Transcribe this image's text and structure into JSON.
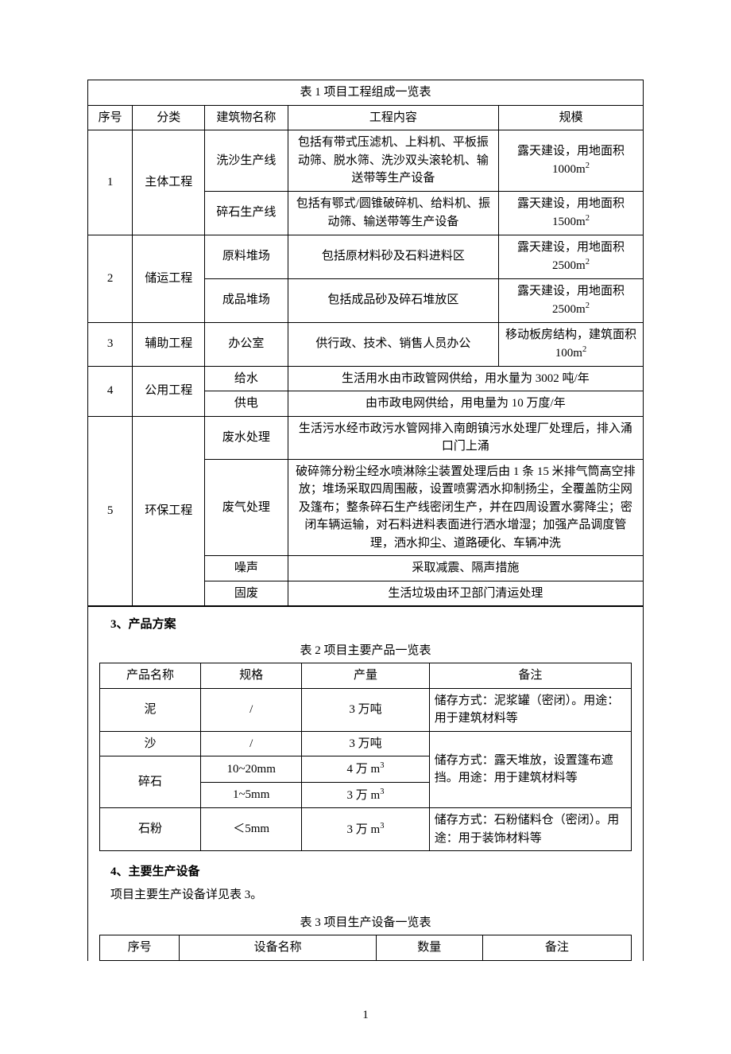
{
  "page_number": "1",
  "table1": {
    "title": "表 1   项目工程组成一览表",
    "headers": [
      "序号",
      "分类",
      "建筑物名称",
      "工程内容",
      "规模"
    ],
    "col_widths": [
      "8%",
      "13%",
      "15%",
      "38%",
      "26%"
    ],
    "rows": [
      {
        "seq": "1",
        "cat": "主体工程",
        "cat_rowspan": 2,
        "seq_rowspan": 2,
        "name": "洗沙生产线",
        "content": "包括有带式压滤机、上料机、平板振动筛、脱水筛、洗沙双头滚轮机、输送带等生产设备",
        "scale": "露天建设，用地面积1000m²"
      },
      {
        "name": "碎石生产线",
        "content": "包括有鄂式/圆锥破碎机、给料机、振动筛、输送带等生产设备",
        "scale": "露天建设，用地面积1500m²"
      },
      {
        "seq": "2",
        "cat": "储运工程",
        "cat_rowspan": 2,
        "seq_rowspan": 2,
        "name": "原料堆场",
        "content": "包括原材料砂及石料进料区",
        "scale": "露天建设，用地面积2500m²"
      },
      {
        "name": "成品堆场",
        "content": "包括成品砂及碎石堆放区",
        "scale": "露天建设，用地面积2500m²"
      },
      {
        "seq": "3",
        "cat": "辅助工程",
        "name": "办公室",
        "content": "供行政、技术、销售人员办公",
        "scale": "移动板房结构，建筑面积 100m²"
      },
      {
        "seq": "4",
        "cat": "公用工程",
        "cat_rowspan": 2,
        "seq_rowspan": 2,
        "name": "给水",
        "merged_content": "生活用水由市政管网供给，用水量为 3002 吨/年"
      },
      {
        "name": "供电",
        "merged_content": "由市政电网供给，用电量为 10 万度/年"
      },
      {
        "seq": "5",
        "cat": "环保工程",
        "cat_rowspan": 4,
        "seq_rowspan": 4,
        "name": "废水处理",
        "merged_content": "生活污水经市政污水管网排入南朗镇污水处理厂处理后，排入涌口门上涌"
      },
      {
        "name": "废气处理",
        "merged_content": "破碎筛分粉尘经水喷淋除尘装置处理后由 1 条 15 米排气筒高空排放；堆场采取四周围蔽，设置喷雾洒水抑制扬尘，全覆盖防尘网及篷布；整条碎石生产线密闭生产，并在四周设置水雾降尘；密闭车辆运输，对石料进料表面进行洒水增湿；加强产品调度管理，洒水抑尘、道路硬化、车辆冲洗"
      },
      {
        "name": "噪声",
        "merged_content": "采取减震、隔声措施"
      },
      {
        "name": "固废",
        "merged_content": "生活垃圾由环卫部门清运处理"
      }
    ]
  },
  "section3": {
    "heading": "3、产品方案"
  },
  "table2": {
    "title": "表 2  项目主要产品一览表",
    "headers": [
      "产品名称",
      "规格",
      "产量",
      "备注"
    ],
    "col_widths": [
      "19%",
      "19%",
      "24%",
      "38%"
    ],
    "rows": [
      {
        "name": "泥",
        "spec": "/",
        "output": "3 万吨",
        "note": "储存方式：泥浆罐（密闭）。用途：用于建筑材料等"
      },
      {
        "name": "沙",
        "spec": "/",
        "output": "3 万吨",
        "note": "储存方式：露天堆放，设置篷布遮挡。用途：用于建筑材料等",
        "note_rowspan": 3
      },
      {
        "name": "碎石",
        "name_rowspan": 2,
        "spec": "10~20mm",
        "output": "4 万 m³"
      },
      {
        "spec": "1~5mm",
        "output": "3 万 m³"
      },
      {
        "name": "石粉",
        "spec": "＜5mm",
        "output": "3 万 m³",
        "note": "储存方式：石粉储料仓（密闭）。用途：用于装饰材料等"
      }
    ]
  },
  "section4": {
    "heading": "4、主要生产设备",
    "body": "项目主要生产设备详见表 3。"
  },
  "table3": {
    "title": "表 3   项目生产设备一览表",
    "headers": [
      "序号",
      "设备名称",
      "数量",
      "备注"
    ],
    "col_widths": [
      "15%",
      "37%",
      "20%",
      "28%"
    ]
  }
}
